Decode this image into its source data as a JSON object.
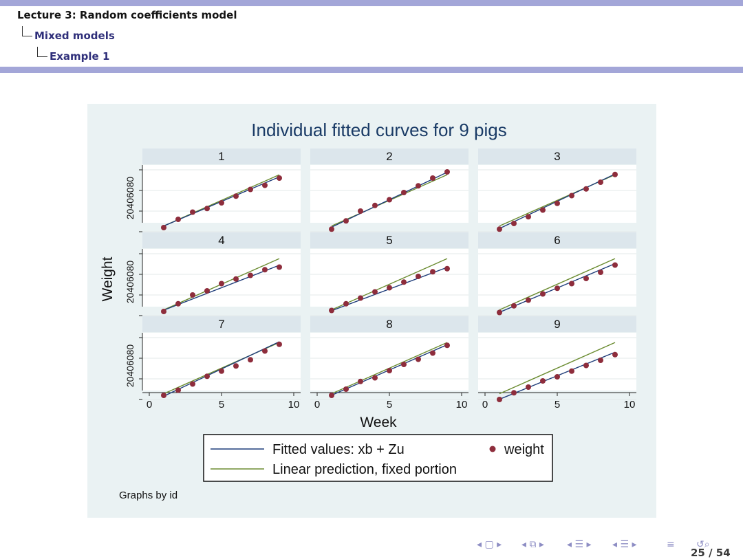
{
  "header": {
    "lecture": "Lecture 3: Random coefficients model",
    "section": "Mixed models",
    "subsection": "Example 1"
  },
  "chart_data": {
    "type": "scatter",
    "title": "Individual fitted curves for 9 pigs",
    "xlabel": "Week",
    "ylabel": "Weight",
    "xlim": [
      0,
      10
    ],
    "ylim": [
      20,
      80
    ],
    "xticks": [
      0,
      5,
      10
    ],
    "yticks": [
      20,
      40,
      60,
      80
    ],
    "x": [
      1,
      2,
      3,
      4,
      5,
      6,
      7,
      8,
      9
    ],
    "fixed": {
      "intercept": 19.36,
      "slope": 6.21
    },
    "panels": [
      {
        "id": "1",
        "fitted": {
          "intercept": 19.6,
          "slope": 5.95
        },
        "weight": [
          24,
          32,
          39,
          42.5,
          48,
          54.5,
          61,
          65,
          72
        ]
      },
      {
        "id": "2",
        "fitted": {
          "intercept": 17.8,
          "slope": 6.65
        },
        "weight": [
          22.5,
          30.5,
          40,
          45.5,
          51,
          58,
          64.5,
          72,
          78
        ]
      },
      {
        "id": "3",
        "fitted": {
          "intercept": 16.5,
          "slope": 6.6
        },
        "weight": [
          22.5,
          28,
          34.5,
          41,
          47.5,
          55,
          61.5,
          68,
          75.5
        ]
      },
      {
        "id": "4",
        "fitted": {
          "intercept": 19.8,
          "slope": 5.45
        },
        "weight": [
          24,
          31.5,
          40,
          44,
          51,
          55.5,
          59,
          64.5,
          67
        ]
      },
      {
        "id": "5",
        "fitted": {
          "intercept": 19.5,
          "slope": 5.25
        },
        "weight": [
          25,
          31.5,
          37,
          43,
          47,
          52.5,
          58,
          62.5,
          65.5
        ]
      },
      {
        "id": "6",
        "fitted": {
          "intercept": 17.3,
          "slope": 5.9
        },
        "weight": [
          23,
          29.5,
          35,
          41,
          46.5,
          51,
          56,
          62,
          69
        ]
      },
      {
        "id": "7",
        "fitted": {
          "intercept": 16.6,
          "slope": 6.6
        },
        "weight": [
          24,
          29,
          35,
          42.5,
          47.5,
          52.5,
          58.5,
          67,
          73.5
        ]
      },
      {
        "id": "8",
        "fitted": {
          "intercept": 18.0,
          "slope": 6.12
        },
        "weight": [
          24,
          30,
          37.5,
          41,
          48,
          54,
          59,
          65,
          72.5
        ]
      },
      {
        "id": "9",
        "fitted": {
          "intercept": 14.5,
          "slope": 5.7
        },
        "weight": [
          20,
          26.5,
          32,
          38,
          42,
          47.5,
          53,
          58,
          63.5
        ]
      }
    ],
    "legend": {
      "fitted_label": "Fitted values: xb + Zu",
      "fixed_label": "Linear prediction, fixed portion",
      "weight_label": "weight"
    },
    "note": "Graphs by id",
    "colors": {
      "fitted": "#1f3d7a",
      "fixed": "#6b8c31",
      "marker": "#8e2d3c",
      "panel_title_bg": "#dce6ec",
      "plot_bg": "#ffffff",
      "frame_bg": "#eaf2f3",
      "title_text": "#1a3b66"
    }
  },
  "footer": {
    "nav_icons": [
      "nav-frame-left",
      "nav-frame-right",
      "nav-subsection",
      "nav-section",
      "nav-align",
      "nav-search"
    ],
    "page": "25 / 54"
  }
}
